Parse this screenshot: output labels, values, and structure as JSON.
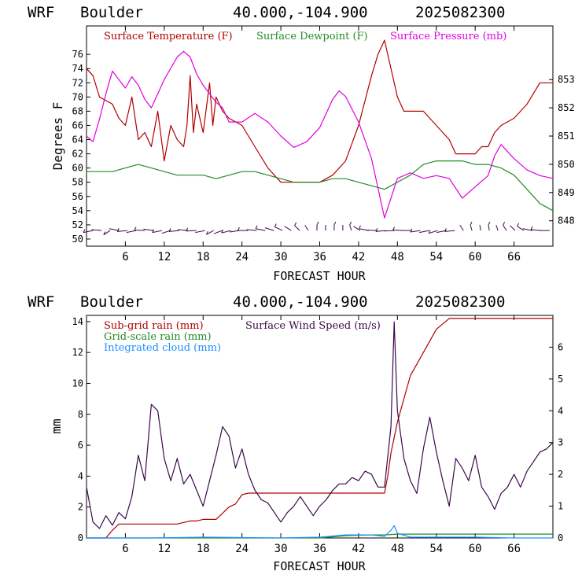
{
  "colors": {
    "temperature": "#b00000",
    "dewpoint": "#228b22",
    "pressure": "#e000e0",
    "subgrid_rain": "#b00000",
    "gridscale_rain": "#228b22",
    "integrated_cloud": "#1e90ff",
    "wind_speed": "#3a0a4a",
    "wind_barbs": "#3a0a4a"
  },
  "chart_data": [
    {
      "type": "line",
      "header": {
        "model": "WRF",
        "location": "Boulder",
        "coords": "40.000,-104.900",
        "run": "2025082300"
      },
      "xlabel": "FORECAST HOUR",
      "ylabel": "Degrees F",
      "xlim": [
        0,
        72
      ],
      "ylim": [
        49,
        80
      ],
      "y2lim": [
        847.1,
        854.9
      ],
      "xticks": [
        6,
        12,
        18,
        24,
        30,
        36,
        42,
        48,
        54,
        60,
        66
      ],
      "xtick_labels": [
        "6",
        "12",
        "18",
        "24",
        "30",
        "36",
        "42",
        "48",
        "54",
        "60",
        "66"
      ],
      "yticks": [
        50,
        52,
        54,
        56,
        58,
        60,
        62,
        64,
        66,
        68,
        70,
        72,
        74,
        76
      ],
      "ytick_labels": [
        "50",
        "52",
        "54",
        "56",
        "58",
        "60",
        "62",
        "64",
        "66",
        "68",
        "70",
        "72",
        "74",
        "76"
      ],
      "y2ticks": [
        848,
        849,
        850,
        851,
        852,
        853
      ],
      "y2tick_labels": [
        "848",
        "849",
        "850",
        "851",
        "852",
        "853"
      ],
      "series": [
        {
          "name": "Surface Temperature (F)",
          "color_key": "temperature",
          "axis": "left",
          "x": [
            0,
            1,
            2,
            4,
            5,
            6,
            7,
            8,
            9,
            10,
            11,
            12,
            13,
            14,
            15,
            15.5,
            16,
            16.5,
            17,
            18,
            19,
            19.5,
            20,
            21,
            22,
            24,
            26,
            28,
            30,
            32,
            34,
            36,
            38,
            40,
            42,
            44,
            45,
            46,
            47,
            48,
            49,
            50,
            52,
            54,
            56,
            57,
            58,
            60,
            61,
            62,
            63,
            64,
            66,
            68,
            70,
            72
          ],
          "y": [
            74,
            73,
            70,
            69,
            67,
            66,
            70,
            64,
            65,
            63,
            68,
            61,
            66,
            64,
            63,
            66,
            73,
            65,
            69,
            65,
            72,
            66,
            70,
            68,
            67,
            66,
            63,
            60,
            58,
            58,
            58,
            58,
            59,
            61,
            66,
            73,
            76,
            78,
            74,
            70,
            68,
            68,
            68,
            66,
            64,
            62,
            62,
            62,
            63,
            63,
            65,
            66,
            67,
            69,
            72,
            72
          ]
        },
        {
          "name": "Surface Dewpoint (F)",
          "color_key": "dewpoint",
          "axis": "left",
          "x": [
            0,
            2,
            4,
            6,
            8,
            10,
            12,
            14,
            16,
            18,
            20,
            22,
            24,
            26,
            28,
            30,
            32,
            34,
            36,
            38,
            40,
            42,
            44,
            46,
            48,
            50,
            52,
            54,
            56,
            58,
            60,
            62,
            64,
            66,
            68,
            70,
            72
          ],
          "y": [
            59.5,
            59.5,
            59.5,
            60,
            60.5,
            60,
            59.5,
            59,
            59,
            59,
            58.5,
            59,
            59.5,
            59.5,
            59,
            58.5,
            58,
            58,
            58,
            58.5,
            58.5,
            58,
            57.5,
            57,
            58,
            59,
            60.5,
            61,
            61,
            61,
            60.5,
            60.5,
            60,
            59,
            57,
            55,
            54
          ]
        },
        {
          "name": "Surface Pressure (mb)",
          "color_key": "pressure",
          "axis": "right",
          "x": [
            0,
            1,
            2,
            3,
            4,
            5,
            6,
            7,
            8,
            9,
            10,
            11,
            12,
            13,
            14,
            15,
            16,
            17,
            18,
            19,
            20,
            21,
            22,
            24,
            26,
            28,
            30,
            32,
            34,
            36,
            38,
            39,
            40,
            42,
            44,
            46,
            48,
            50,
            52,
            54,
            56,
            58,
            60,
            62,
            63,
            64,
            66,
            68,
            70,
            72
          ],
          "y": [
            851,
            850.8,
            851.6,
            852.5,
            853.3,
            853,
            852.7,
            853.1,
            852.8,
            852.3,
            852,
            852.5,
            853,
            853.4,
            853.8,
            854.0,
            853.8,
            853.2,
            852.8,
            852.5,
            852.2,
            852,
            851.5,
            851.5,
            851.8,
            851.5,
            851,
            850.6,
            850.8,
            851.3,
            852.3,
            852.6,
            852.4,
            851.5,
            850.2,
            848.1,
            849.5,
            849.7,
            849.5,
            849.6,
            849.5,
            848.8,
            849.2,
            849.6,
            850.3,
            850.7,
            850.2,
            849.8,
            849.6,
            849.5
          ]
        }
      ],
      "wind_barbs": "row of wind barbs along y ≈ 51"
    },
    {
      "type": "line",
      "header": {
        "model": "WRF",
        "location": "Boulder",
        "coords": "40.000,-104.900",
        "run": "2025082300"
      },
      "xlabel": "FORECAST HOUR",
      "ylabel": "mm",
      "xlim": [
        0,
        72
      ],
      "ylim": [
        0,
        14.4
      ],
      "y2lim": [
        0,
        7
      ],
      "xticks": [
        6,
        12,
        18,
        24,
        30,
        36,
        42,
        48,
        54,
        60,
        66
      ],
      "xtick_labels": [
        "6",
        "12",
        "18",
        "24",
        "30",
        "36",
        "42",
        "48",
        "54",
        "60",
        "66"
      ],
      "yticks": [
        0,
        2,
        4,
        6,
        8,
        10,
        12,
        14
      ],
      "ytick_labels": [
        "0",
        "2",
        "4",
        "6",
        "8",
        "10",
        "12",
        "14"
      ],
      "y2ticks": [
        0,
        1,
        2,
        3,
        4,
        5,
        6
      ],
      "y2tick_labels": [
        "0",
        "1",
        "2",
        "3",
        "4",
        "5",
        "6"
      ],
      "series": [
        {
          "name": "Sub-grid rain (mm)",
          "color_key": "subgrid_rain",
          "axis": "left",
          "x": [
            0,
            3,
            4,
            5,
            6,
            14,
            15,
            16,
            17,
            18,
            20,
            21,
            22,
            23,
            24,
            25,
            26,
            46,
            46.5,
            47,
            48,
            50,
            52,
            54,
            56,
            72
          ],
          "y": [
            0,
            0,
            0.5,
            0.9,
            0.9,
            0.9,
            1.0,
            1.1,
            1.1,
            1.2,
            1.2,
            1.6,
            2.0,
            2.2,
            2.8,
            2.9,
            2.9,
            2.9,
            4.0,
            5.5,
            7.5,
            10.5,
            12.0,
            13.5,
            14.2,
            14.2
          ]
        },
        {
          "name": "Grid-scale rain (mm)",
          "color_key": "gridscale_rain",
          "axis": "left",
          "x": [
            0,
            36,
            40,
            44,
            46,
            48,
            72
          ],
          "y": [
            0,
            0,
            0.15,
            0.2,
            0.2,
            0.25,
            0.25
          ]
        },
        {
          "name": "Integrated cloud (mm)",
          "color_key": "integrated_cloud",
          "axis": "left",
          "x": [
            0,
            10,
            18,
            30,
            36,
            40,
            44,
            46,
            47,
            47.5,
            48,
            50,
            54,
            60,
            66,
            72
          ],
          "y": [
            0,
            0,
            0.05,
            0,
            0.05,
            0.2,
            0.2,
            0.1,
            0.5,
            0.8,
            0.3,
            0.05,
            0.05,
            0.05,
            0,
            0
          ]
        },
        {
          "name": "Surface Wind Speed (m/s)",
          "color_key": "wind_speed",
          "axis": "right",
          "x": [
            0,
            1,
            2,
            3,
            4,
            5,
            6,
            7,
            8,
            9,
            10,
            11,
            12,
            13,
            14,
            15,
            16,
            17,
            18,
            19,
            20,
            21,
            22,
            23,
            24,
            25,
            26,
            27,
            28,
            29,
            30,
            31,
            32,
            33,
            34,
            35,
            36,
            37,
            38,
            39,
            40,
            41,
            42,
            43,
            44,
            45,
            46,
            47,
            47.5,
            48,
            49,
            50,
            51,
            52,
            53,
            54,
            55,
            56,
            57,
            58,
            59,
            60,
            61,
            62,
            63,
            64,
            65,
            66,
            67,
            68,
            69,
            70,
            71,
            72
          ],
          "y": [
            1.6,
            0.5,
            0.3,
            0.7,
            0.4,
            0.8,
            0.6,
            1.3,
            2.6,
            1.8,
            4.2,
            4.0,
            2.5,
            1.8,
            2.5,
            1.7,
            2.0,
            1.5,
            1.0,
            1.8,
            2.6,
            3.5,
            3.2,
            2.2,
            2.8,
            2.0,
            1.5,
            1.2,
            1.1,
            0.8,
            0.5,
            0.8,
            1.0,
            1.3,
            1.0,
            0.7,
            1.0,
            1.2,
            1.5,
            1.7,
            1.7,
            1.9,
            1.8,
            2.1,
            2.0,
            1.6,
            1.6,
            3.5,
            6.8,
            4.0,
            2.5,
            1.8,
            1.4,
            2.8,
            3.8,
            2.7,
            1.8,
            1.0,
            2.5,
            2.2,
            1.8,
            2.6,
            1.6,
            1.3,
            0.9,
            1.4,
            1.6,
            2.0,
            1.6,
            2.1,
            2.4,
            2.7,
            2.8,
            3.0
          ]
        }
      ]
    }
  ]
}
